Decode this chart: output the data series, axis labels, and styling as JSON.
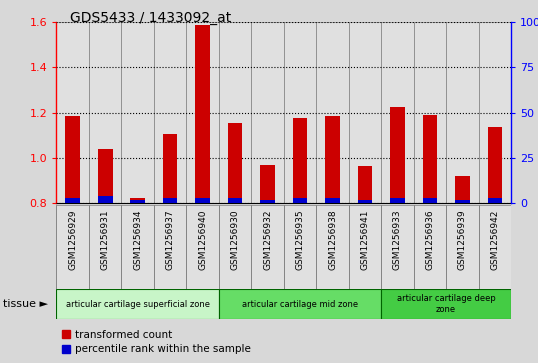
{
  "title": "GDS5433 / 1433092_at",
  "samples": [
    "GSM1256929",
    "GSM1256931",
    "GSM1256934",
    "GSM1256937",
    "GSM1256940",
    "GSM1256930",
    "GSM1256932",
    "GSM1256935",
    "GSM1256938",
    "GSM1256941",
    "GSM1256933",
    "GSM1256936",
    "GSM1256939",
    "GSM1256942"
  ],
  "transformed_count": [
    1.185,
    1.04,
    0.825,
    1.105,
    1.585,
    1.155,
    0.97,
    1.175,
    1.185,
    0.965,
    1.225,
    1.19,
    0.92,
    1.135
  ],
  "percentile_rank": [
    3,
    4,
    2,
    3,
    3,
    3,
    2,
    3,
    3,
    2,
    3,
    3,
    2,
    3
  ],
  "groups": [
    {
      "label": "articular cartilage superficial zone",
      "start": 0,
      "end": 5,
      "color": "#c8f5c8"
    },
    {
      "label": "articular cartilage mid zone",
      "start": 5,
      "end": 10,
      "color": "#66dd66"
    },
    {
      "label": "articular cartilage deep\nzone",
      "start": 10,
      "end": 14,
      "color": "#44cc44"
    }
  ],
  "ylim_left": [
    0.8,
    1.6
  ],
  "ylim_right": [
    0,
    100
  ],
  "yticks_left": [
    0.8,
    1.0,
    1.2,
    1.4,
    1.6
  ],
  "yticks_right": [
    0,
    25,
    50,
    75,
    100
  ],
  "bar_color_red": "#cc0000",
  "bar_color_blue": "#0000cc",
  "bg_color": "#d8d8d8",
  "plot_bg": "#ffffff",
  "col_bg": "#e0e0e0",
  "tissue_label": "tissue",
  "legend_red": "transformed count",
  "legend_blue": "percentile rank within the sample"
}
